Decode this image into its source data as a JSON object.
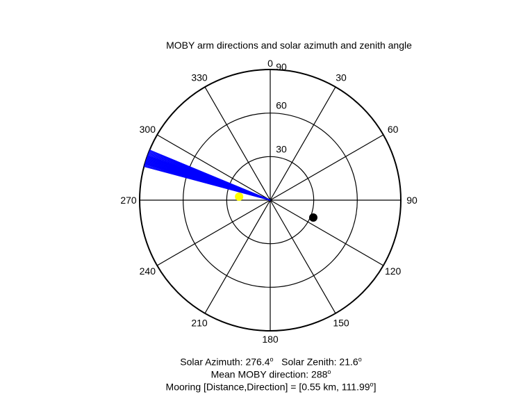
{
  "chart_data": {
    "type": "polar",
    "title": "MOBY arm directions and solar azimuth and zenith angle",
    "angle_ticks": [
      0,
      30,
      60,
      90,
      120,
      150,
      180,
      210,
      240,
      270,
      300,
      330
    ],
    "radial_ticks": [
      30,
      60,
      90
    ],
    "rlim": [
      0,
      90
    ],
    "angle_zero": "top",
    "angle_direction": "clockwise",
    "grid": true,
    "series": [
      {
        "kind": "arm-lines",
        "color": "#0000ff",
        "directions_deg": [
          285.0,
          285.5,
          286.0,
          286.4,
          286.8,
          287.2,
          287.6,
          288.0,
          288.4,
          288.8,
          289.2,
          289.6,
          290.0,
          290.5,
          291.0,
          291.5,
          292.0,
          292.5
        ],
        "radius": 90
      },
      {
        "kind": "point",
        "label": "solar",
        "color": "#ffff00",
        "azimuth_deg": 276.4,
        "zenith_deg": 21.6
      },
      {
        "kind": "point",
        "label": "mooring",
        "color": "#000000",
        "azimuth_deg": 111.99,
        "radius": 32
      }
    ]
  },
  "caption": {
    "solar_azimuth_label": "Solar Azimuth: 276.4",
    "solar_zenith_label": "Solar Zenith: 21.6",
    "mean_label": "Mean MOBY direction: 288",
    "mooring_label": "Mooring [Distance,Direction] = [0.55 km, 111.99",
    "mooring_tail": "]",
    "degree_symbol": "o"
  }
}
